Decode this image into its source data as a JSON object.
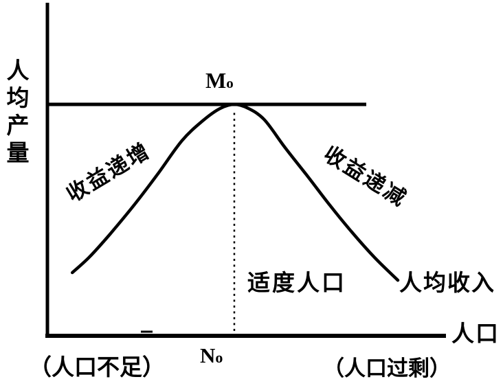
{
  "labels": {
    "y_axis": "人均产量",
    "x_axis": "人口",
    "peak_main": "M",
    "peak_sub": "o",
    "x_optimal_main": "N",
    "x_optimal_sub": "o",
    "left_slope": "收益递增",
    "right_slope": "收益递减",
    "optimal_population": "适度人口",
    "curve_name": "人均收入",
    "left_zone": "（人口不足）",
    "right_zone": "（人口过剩）"
  },
  "colors": {
    "ink": "#000000",
    "background": "#ffffff"
  },
  "chart_data": {
    "type": "line",
    "title": "",
    "xlabel": "人口",
    "ylabel": "人均产量",
    "grid": false,
    "legend": false,
    "axis_ranges": {
      "x": [
        0,
        1
      ],
      "y": [
        0,
        1
      ]
    },
    "x_tick_labels": [
      {
        "label": "No",
        "x": 0.469
      }
    ],
    "peak": {
      "label": "Mo",
      "x": 0.469,
      "y": 1.0
    },
    "series": [
      {
        "name": "人均收入",
        "points": [
          [
            0.064,
            0.273
          ],
          [
            0.107,
            0.341
          ],
          [
            0.158,
            0.439
          ],
          [
            0.218,
            0.564
          ],
          [
            0.278,
            0.7
          ],
          [
            0.338,
            0.843
          ],
          [
            0.39,
            0.929
          ],
          [
            0.433,
            0.982
          ],
          [
            0.469,
            1.0
          ],
          [
            0.505,
            0.982
          ],
          [
            0.545,
            0.932
          ],
          [
            0.596,
            0.813
          ],
          [
            0.653,
            0.688
          ],
          [
            0.708,
            0.564
          ],
          [
            0.763,
            0.448
          ],
          [
            0.82,
            0.338
          ],
          [
            0.878,
            0.24
          ]
        ]
      }
    ],
    "reference_lines": {
      "horizontal": {
        "y": 1.0,
        "x_start": 0.0,
        "x_end": 0.799,
        "style": "solid"
      },
      "vertical": {
        "x": 0.469,
        "y_start": 0.0,
        "y_end": 0.99,
        "style": "dotted"
      }
    },
    "annotations": [
      {
        "text": "收益递增",
        "region": "left-slope",
        "rotation_deg": -31
      },
      {
        "text": "收益递减",
        "region": "right-slope",
        "rotation_deg": 32
      },
      {
        "text": "适度人口",
        "region": "below-curve-center"
      },
      {
        "text": "人均收入",
        "region": "curve-right-end"
      },
      {
        "text": "（人口不足）",
        "region": "below-x-axis-left"
      },
      {
        "text": "（人口过剩）",
        "region": "below-x-axis-right"
      }
    ]
  }
}
